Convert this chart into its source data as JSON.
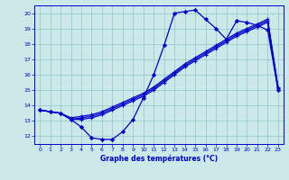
{
  "title": "Graphe des températures (°C)",
  "xlim": [
    -0.5,
    23.5
  ],
  "ylim": [
    11.5,
    20.5
  ],
  "yticks": [
    12,
    13,
    14,
    15,
    16,
    17,
    18,
    19,
    20
  ],
  "xticks": [
    0,
    1,
    2,
    3,
    4,
    5,
    6,
    7,
    8,
    9,
    10,
    11,
    12,
    13,
    14,
    15,
    16,
    17,
    18,
    19,
    20,
    21,
    22,
    23
  ],
  "bg_color": "#cce8e8",
  "grid_color": "#99cccc",
  "line_color": "#0000cc",
  "line1": {
    "x": [
      0,
      1,
      2,
      3,
      4,
      5,
      6,
      7,
      8,
      9,
      10,
      11,
      12,
      13,
      14,
      15,
      16,
      17,
      18,
      19,
      20,
      21,
      22,
      23
    ],
    "y": [
      13.7,
      13.6,
      13.5,
      13.1,
      12.6,
      11.9,
      11.8,
      11.8,
      12.3,
      13.1,
      14.5,
      16.0,
      17.9,
      20.0,
      20.1,
      20.2,
      19.6,
      19.0,
      18.3,
      19.5,
      19.4,
      19.2,
      18.9,
      15.0
    ]
  },
  "line2": {
    "x": [
      0,
      1,
      2,
      3,
      4,
      5,
      6,
      7,
      8,
      9,
      10,
      11,
      12,
      13,
      14,
      15,
      16,
      17,
      18,
      19,
      20,
      21,
      22,
      23
    ],
    "y": [
      13.7,
      13.6,
      13.5,
      13.1,
      13.1,
      13.2,
      13.4,
      13.7,
      14.0,
      14.3,
      14.6,
      15.0,
      15.5,
      16.0,
      16.5,
      16.9,
      17.3,
      17.7,
      18.1,
      18.5,
      18.8,
      19.1,
      19.4,
      15.0
    ]
  },
  "line3": {
    "x": [
      0,
      1,
      2,
      3,
      4,
      5,
      6,
      7,
      8,
      9,
      10,
      11,
      12,
      13,
      14,
      15,
      16,
      17,
      18,
      19,
      20,
      21,
      22,
      23
    ],
    "y": [
      13.7,
      13.6,
      13.5,
      13.1,
      13.2,
      13.3,
      13.5,
      13.8,
      14.1,
      14.4,
      14.7,
      15.1,
      15.6,
      16.1,
      16.6,
      17.0,
      17.4,
      17.8,
      18.2,
      18.6,
      18.9,
      19.2,
      19.5,
      15.1
    ]
  },
  "line4": {
    "x": [
      0,
      1,
      2,
      3,
      4,
      5,
      6,
      7,
      8,
      9,
      10,
      11,
      12,
      13,
      14,
      15,
      16,
      17,
      18,
      19,
      20,
      21,
      22,
      23
    ],
    "y": [
      13.7,
      13.6,
      13.5,
      13.2,
      13.3,
      13.4,
      13.6,
      13.9,
      14.2,
      14.5,
      14.8,
      15.2,
      15.7,
      16.2,
      16.7,
      17.1,
      17.5,
      17.9,
      18.3,
      18.7,
      19.0,
      19.3,
      19.6,
      15.2
    ]
  }
}
